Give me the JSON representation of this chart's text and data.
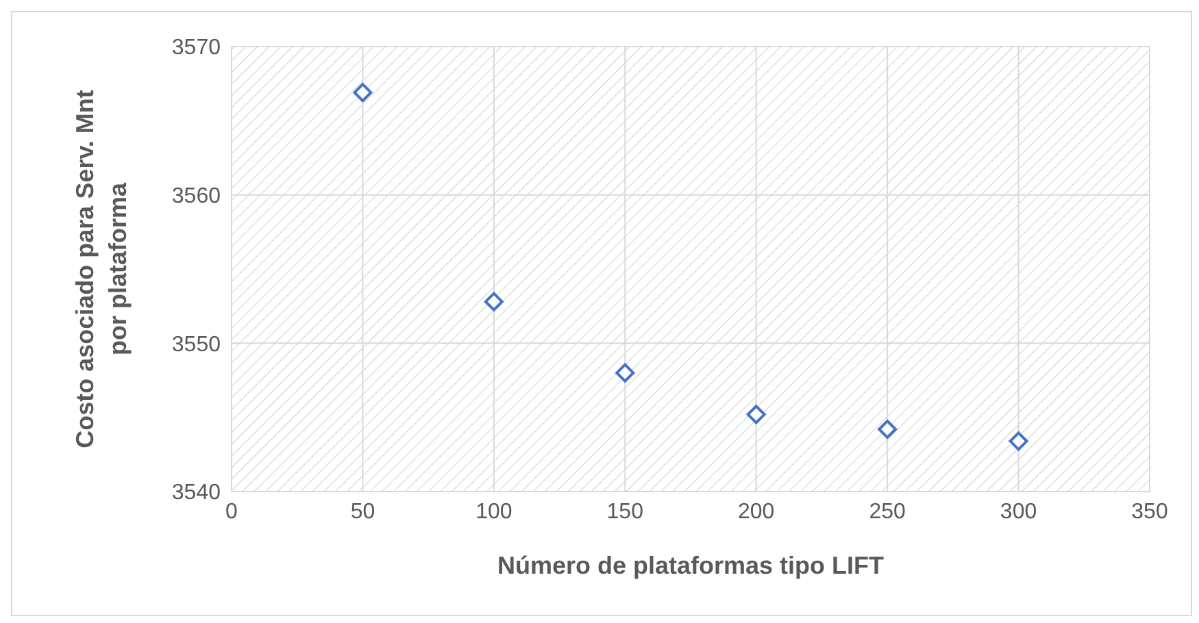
{
  "chart_data": {
    "type": "scatter",
    "xlabel": "Número de plataformas tipo LIFT",
    "ylabel": "Costo asociado para Serv. Mnt por plataforma",
    "x": [
      50,
      100,
      150,
      200,
      250,
      300
    ],
    "series": [
      {
        "color": "#4472c4",
        "values": [
          3566.9,
          3552.8,
          3548.0,
          3545.2,
          3544.2,
          3543.4
        ]
      }
    ],
    "xlim": [
      0,
      350
    ],
    "xticks": [
      0,
      50,
      100,
      150,
      200,
      250,
      300,
      350
    ],
    "ylim": [
      3540,
      3570
    ],
    "yticks": [
      3540,
      3550,
      3560,
      3570
    ],
    "grid": true,
    "marker": "diamond"
  }
}
